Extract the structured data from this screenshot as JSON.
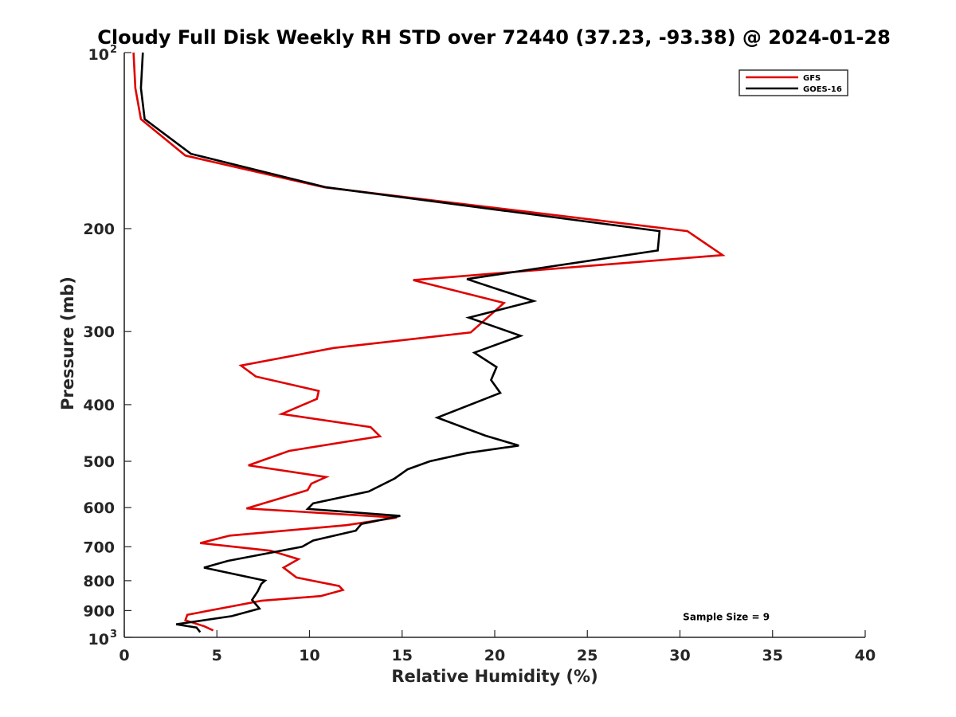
{
  "chart_data": {
    "type": "line",
    "title": "Cloudy Full Disk Weekly RH STD over 72440 (37.23, -93.38) @ 2024-01-28",
    "xlabel": "Relative Humidity (%)",
    "ylabel": "Pressure (mb)",
    "xlim": [
      0,
      40
    ],
    "ylim": [
      100,
      1000
    ],
    "y_scale": "log",
    "y_reversed": true,
    "x_ticks": [
      "0",
      "5",
      "10",
      "15",
      "20",
      "25",
      "30",
      "35",
      "40"
    ],
    "y_ticks": [
      {
        "value": 100,
        "base": "10",
        "exp": "2"
      },
      {
        "value": 200,
        "base": "200",
        "exp": ""
      },
      {
        "value": 300,
        "base": "300",
        "exp": ""
      },
      {
        "value": 400,
        "base": "400",
        "exp": ""
      },
      {
        "value": 500,
        "base": "500",
        "exp": ""
      },
      {
        "value": 600,
        "base": "600",
        "exp": ""
      },
      {
        "value": 700,
        "base": "700",
        "exp": ""
      },
      {
        "value": 800,
        "base": "800",
        "exp": ""
      },
      {
        "value": 900,
        "base": "900",
        "exp": ""
      },
      {
        "value": 1000,
        "base": "10",
        "exp": "3"
      }
    ],
    "grid": false,
    "legend_position": "top-right",
    "annotation": "Sample Size = 9",
    "series": [
      {
        "name": "GFS",
        "color": "#e00000",
        "points": [
          [
            0.5,
            100
          ],
          [
            0.6,
            115
          ],
          [
            0.9,
            130
          ],
          [
            3.3,
            150
          ],
          [
            10.8,
            170
          ],
          [
            30.4,
            202
          ],
          [
            32.3,
            222
          ],
          [
            15.6,
            245
          ],
          [
            20.5,
            268
          ],
          [
            18.7,
            301
          ],
          [
            11.3,
            320
          ],
          [
            6.3,
            343
          ],
          [
            7.1,
            358
          ],
          [
            10.5,
            379
          ],
          [
            10.4,
            391
          ],
          [
            8.5,
            415
          ],
          [
            13.3,
            437
          ],
          [
            13.8,
            453
          ],
          [
            8.9,
            480
          ],
          [
            6.7,
            508
          ],
          [
            10.9,
            532
          ],
          [
            10.1,
            546
          ],
          [
            9.9,
            560
          ],
          [
            6.6,
            602
          ],
          [
            14.7,
            624
          ],
          [
            12.0,
            643
          ],
          [
            5.7,
            670
          ],
          [
            4.1,
            690
          ],
          [
            7.9,
            711
          ],
          [
            9.4,
            735
          ],
          [
            8.6,
            760
          ],
          [
            9.3,
            790
          ],
          [
            11.6,
            817
          ],
          [
            11.8,
            830
          ],
          [
            10.6,
            850
          ],
          [
            7.4,
            866
          ],
          [
            5.8,
            885
          ],
          [
            3.4,
            915
          ],
          [
            3.3,
            935
          ],
          [
            4.3,
            957
          ],
          [
            4.8,
            973
          ]
        ]
      },
      {
        "name": "GOES-16",
        "color": "#000000",
        "points": [
          [
            1.0,
            100
          ],
          [
            0.9,
            115
          ],
          [
            1.1,
            130
          ],
          [
            3.6,
            149
          ],
          [
            10.9,
            170
          ],
          [
            28.9,
            202
          ],
          [
            28.8,
            218
          ],
          [
            18.5,
            244
          ],
          [
            22.1,
            266
          ],
          [
            18.6,
            284
          ],
          [
            21.4,
            305
          ],
          [
            18.9,
            326
          ],
          [
            20.1,
            345
          ],
          [
            19.8,
            363
          ],
          [
            20.3,
            382
          ],
          [
            16.9,
            421
          ],
          [
            19.5,
            452
          ],
          [
            21.3,
            470
          ],
          [
            18.5,
            484
          ],
          [
            16.5,
            500
          ],
          [
            15.3,
            516
          ],
          [
            14.6,
            535
          ],
          [
            13.2,
            563
          ],
          [
            10.2,
            590
          ],
          [
            9.9,
            603
          ],
          [
            14.9,
            620
          ],
          [
            12.8,
            640
          ],
          [
            12.5,
            657
          ],
          [
            10.2,
            683
          ],
          [
            9.6,
            700
          ],
          [
            5.6,
            740
          ],
          [
            4.3,
            760
          ],
          [
            7.6,
            800
          ],
          [
            7.4,
            810
          ],
          [
            7.2,
            835
          ],
          [
            6.9,
            863
          ],
          [
            7.3,
            893
          ],
          [
            5.8,
            920
          ],
          [
            2.8,
            950
          ],
          [
            3.9,
            962
          ],
          [
            4.1,
            980
          ]
        ]
      }
    ]
  }
}
